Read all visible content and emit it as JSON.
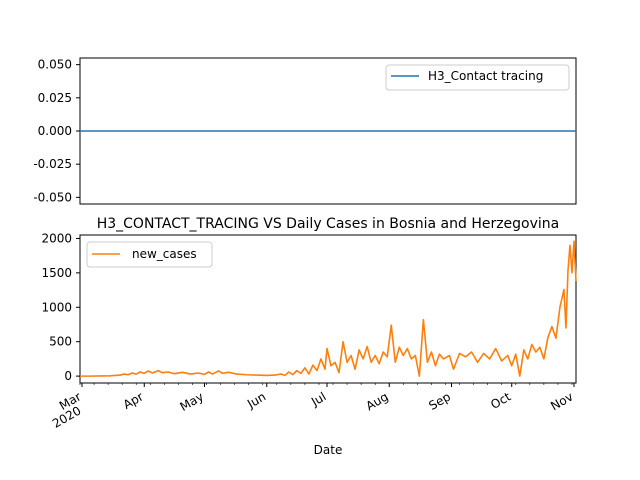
{
  "chart_data": [
    {
      "type": "line",
      "title": "",
      "xlabel": "",
      "ylabel": "",
      "ylim": [
        -0.055,
        0.055
      ],
      "yticks": [
        "0.050",
        "0.025",
        "0.000",
        "-0.025",
        "-0.050"
      ],
      "ytick_values": [
        0.05,
        0.025,
        0.0,
        -0.025,
        -0.05
      ],
      "legend_position": "upper right",
      "series": [
        {
          "name": "H3_Contact tracing",
          "color": "#1f77b4",
          "x_start": "2020-02-29",
          "x_end": "2020-11-02",
          "values": [
            0,
            0
          ]
        }
      ]
    },
    {
      "type": "line",
      "title": "H3_CONTACT_TRACING VS Daily Cases in Bosnia and Herzegovina",
      "xlabel": "Date",
      "ylabel": "",
      "ylim": [
        -100,
        2050
      ],
      "yticks": [
        "0",
        "500",
        "1000",
        "1500",
        "2000"
      ],
      "ytick_values": [
        0,
        500,
        1000,
        1500,
        2000
      ],
      "xticks": [
        {
          "label": "Mar",
          "label2": "2020",
          "date": "2020-03-01"
        },
        {
          "label": "Apr",
          "date": "2020-04-01"
        },
        {
          "label": "May",
          "date": "2020-05-01"
        },
        {
          "label": "Jun",
          "date": "2020-06-01"
        },
        {
          "label": "Jul",
          "date": "2020-07-01"
        },
        {
          "label": "Aug",
          "date": "2020-08-01"
        },
        {
          "label": "Sep",
          "date": "2020-09-01"
        },
        {
          "label": "Oct",
          "date": "2020-10-01"
        },
        {
          "label": "Nov",
          "date": "2020-11-01"
        }
      ],
      "xlim": [
        "2020-02-29",
        "2020-11-02"
      ],
      "legend_position": "upper left",
      "series": [
        {
          "name": "new_cases",
          "color": "#ff7f0e",
          "points": [
            [
              "2020-02-29",
              0
            ],
            [
              "2020-03-05",
              0
            ],
            [
              "2020-03-10",
              2
            ],
            [
              "2020-03-15",
              5
            ],
            [
              "2020-03-20",
              15
            ],
            [
              "2020-03-22",
              30
            ],
            [
              "2020-03-24",
              20
            ],
            [
              "2020-03-26",
              45
            ],
            [
              "2020-03-28",
              30
            ],
            [
              "2020-03-30",
              60
            ],
            [
              "2020-04-01",
              40
            ],
            [
              "2020-04-03",
              75
            ],
            [
              "2020-04-05",
              45
            ],
            [
              "2020-04-08",
              80
            ],
            [
              "2020-04-10",
              50
            ],
            [
              "2020-04-13",
              60
            ],
            [
              "2020-04-16",
              35
            ],
            [
              "2020-04-20",
              55
            ],
            [
              "2020-04-24",
              30
            ],
            [
              "2020-04-28",
              45
            ],
            [
              "2020-05-01",
              25
            ],
            [
              "2020-05-03",
              60
            ],
            [
              "2020-05-05",
              30
            ],
            [
              "2020-05-08",
              75
            ],
            [
              "2020-05-10",
              40
            ],
            [
              "2020-05-13",
              55
            ],
            [
              "2020-05-17",
              30
            ],
            [
              "2020-05-22",
              20
            ],
            [
              "2020-05-27",
              15
            ],
            [
              "2020-06-01",
              10
            ],
            [
              "2020-06-05",
              15
            ],
            [
              "2020-06-08",
              30
            ],
            [
              "2020-06-10",
              10
            ],
            [
              "2020-06-12",
              60
            ],
            [
              "2020-06-14",
              20
            ],
            [
              "2020-06-16",
              80
            ],
            [
              "2020-06-18",
              40
            ],
            [
              "2020-06-20",
              120
            ],
            [
              "2020-06-22",
              30
            ],
            [
              "2020-06-24",
              160
            ],
            [
              "2020-06-26",
              80
            ],
            [
              "2020-06-28",
              250
            ],
            [
              "2020-06-30",
              100
            ],
            [
              "2020-07-01",
              400
            ],
            [
              "2020-07-03",
              150
            ],
            [
              "2020-07-05",
              200
            ],
            [
              "2020-07-07",
              50
            ],
            [
              "2020-07-09",
              500
            ],
            [
              "2020-07-11",
              200
            ],
            [
              "2020-07-13",
              300
            ],
            [
              "2020-07-15",
              100
            ],
            [
              "2020-07-17",
              380
            ],
            [
              "2020-07-19",
              250
            ],
            [
              "2020-07-21",
              430
            ],
            [
              "2020-07-23",
              200
            ],
            [
              "2020-07-25",
              300
            ],
            [
              "2020-07-27",
              180
            ],
            [
              "2020-07-29",
              350
            ],
            [
              "2020-07-31",
              280
            ],
            [
              "2020-08-02",
              740
            ],
            [
              "2020-08-04",
              200
            ],
            [
              "2020-08-06",
              420
            ],
            [
              "2020-08-08",
              300
            ],
            [
              "2020-08-10",
              400
            ],
            [
              "2020-08-12",
              250
            ],
            [
              "2020-08-14",
              300
            ],
            [
              "2020-08-16",
              0
            ],
            [
              "2020-08-18",
              820
            ],
            [
              "2020-08-20",
              200
            ],
            [
              "2020-08-22",
              350
            ],
            [
              "2020-08-24",
              150
            ],
            [
              "2020-08-26",
              320
            ],
            [
              "2020-08-28",
              250
            ],
            [
              "2020-08-31",
              300
            ],
            [
              "2020-09-02",
              100
            ],
            [
              "2020-09-05",
              330
            ],
            [
              "2020-09-08",
              280
            ],
            [
              "2020-09-11",
              350
            ],
            [
              "2020-09-14",
              200
            ],
            [
              "2020-09-17",
              330
            ],
            [
              "2020-09-20",
              250
            ],
            [
              "2020-09-23",
              400
            ],
            [
              "2020-09-26",
              220
            ],
            [
              "2020-09-29",
              300
            ],
            [
              "2020-10-01",
              150
            ],
            [
              "2020-10-03",
              320
            ],
            [
              "2020-10-05",
              0
            ],
            [
              "2020-10-07",
              380
            ],
            [
              "2020-10-09",
              250
            ],
            [
              "2020-10-11",
              460
            ],
            [
              "2020-10-13",
              350
            ],
            [
              "2020-10-15",
              420
            ],
            [
              "2020-10-17",
              250
            ],
            [
              "2020-10-19",
              560
            ],
            [
              "2020-10-21",
              720
            ],
            [
              "2020-10-23",
              550
            ],
            [
              "2020-10-25",
              1000
            ],
            [
              "2020-10-27",
              1260
            ],
            [
              "2020-10-28",
              700
            ],
            [
              "2020-10-29",
              1530
            ],
            [
              "2020-10-30",
              1900
            ],
            [
              "2020-10-31",
              1500
            ],
            [
              "2020-11-01",
              1960
            ],
            [
              "2020-11-02",
              1380
            ]
          ]
        }
      ]
    }
  ]
}
